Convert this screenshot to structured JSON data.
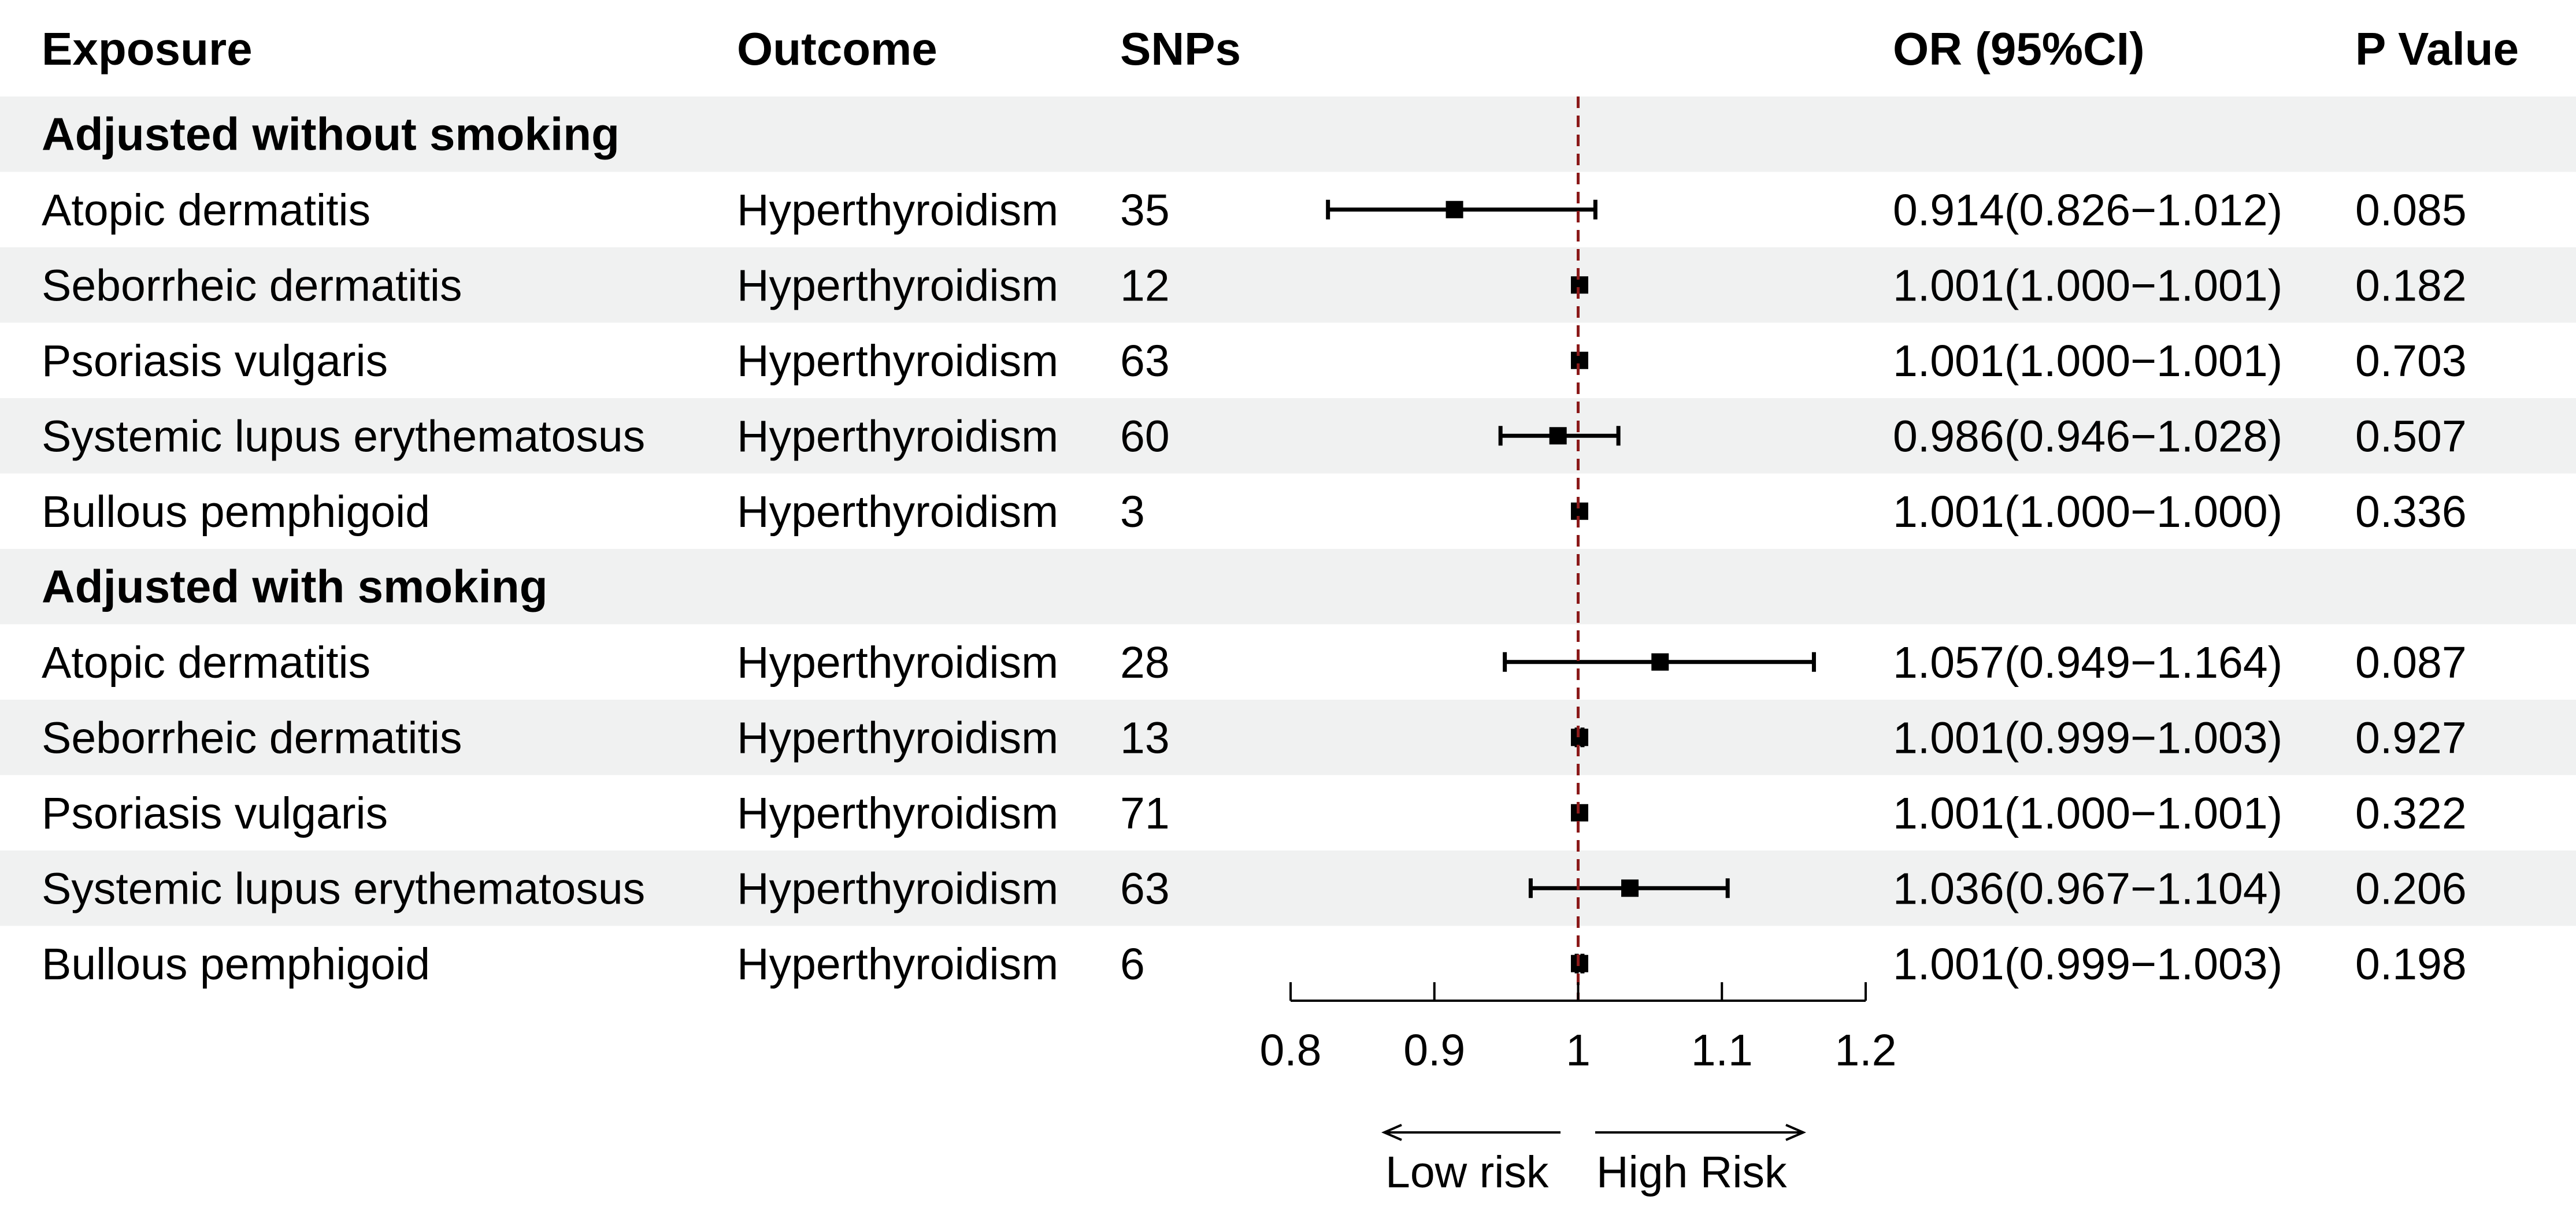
{
  "headers": {
    "exposure": "Exposure",
    "outcome": "Outcome",
    "snps": "SNPs",
    "or": "OR (95%CI)",
    "p": "P Value"
  },
  "chart_data": {
    "type": "forest",
    "reference_line": 1,
    "xlim": [
      0.8,
      1.2
    ],
    "ticks": [
      "0.8",
      "0.9",
      "1",
      "1.1",
      "1.2"
    ],
    "tick_values": [
      0.8,
      0.9,
      1.0,
      1.1,
      1.2
    ],
    "low_risk_label": "Low risk",
    "high_risk_label": "High Risk",
    "sections": [
      {
        "title": "Adjusted without smoking",
        "rows": [
          {
            "exposure": "Atopic dermatitis",
            "outcome": "Hyperthyroidism",
            "snps": "35",
            "or_text": "0.914(0.826−1.012)",
            "p": "0.085",
            "or": 0.914,
            "lo": 0.826,
            "hi": 1.012
          },
          {
            "exposure": "Seborrheic dermatitis",
            "outcome": "Hyperthyroidism",
            "snps": "12",
            "or_text": "1.001(1.000−1.001)",
            "p": "0.182",
            "or": 1.001,
            "lo": 1.0,
            "hi": 1.001
          },
          {
            "exposure": "Psoriasis vulgaris",
            "outcome": "Hyperthyroidism",
            "snps": "63",
            "or_text": "1.001(1.000−1.001)",
            "p": "0.703",
            "or": 1.001,
            "lo": 1.0,
            "hi": 1.001
          },
          {
            "exposure": "Systemic lupus erythematosus",
            "outcome": "Hyperthyroidism",
            "snps": "60",
            "or_text": "0.986(0.946−1.028)",
            "p": "0.507",
            "or": 0.986,
            "lo": 0.946,
            "hi": 1.028
          },
          {
            "exposure": "Bullous pemphigoid",
            "outcome": "Hyperthyroidism",
            "snps": "3",
            "or_text": "1.001(1.000−1.000)",
            "p": "0.336",
            "or": 1.001,
            "lo": 1.0,
            "hi": 1.0
          }
        ]
      },
      {
        "title": "Adjusted with smoking",
        "rows": [
          {
            "exposure": "Atopic dermatitis",
            "outcome": "Hyperthyroidism",
            "snps": "28",
            "or_text": "1.057(0.949−1.164)",
            "p": "0.087",
            "or": 1.057,
            "lo": 0.949,
            "hi": 1.164
          },
          {
            "exposure": "Seborrheic dermatitis",
            "outcome": "Hyperthyroidism",
            "snps": "13",
            "or_text": "1.001(0.999−1.003)",
            "p": "0.927",
            "or": 1.001,
            "lo": 0.999,
            "hi": 1.003
          },
          {
            "exposure": "Psoriasis vulgaris",
            "outcome": "Hyperthyroidism",
            "snps": "71",
            "or_text": "1.001(1.000−1.001)",
            "p": "0.322",
            "or": 1.001,
            "lo": 1.0,
            "hi": 1.001
          },
          {
            "exposure": "Systemic lupus erythematosus",
            "outcome": "Hyperthyroidism",
            "snps": "63",
            "or_text": "1.036(0.967−1.104)",
            "p": "0.206",
            "or": 1.036,
            "lo": 0.967,
            "hi": 1.104
          },
          {
            "exposure": "Bullous pemphigoid",
            "outcome": "Hyperthyroidism",
            "snps": "6",
            "or_text": "1.001(0.999−1.003)",
            "p": "0.198",
            "or": 1.001,
            "lo": 0.999,
            "hi": 1.003
          }
        ]
      }
    ]
  },
  "colors": {
    "stripe": "#f0f1f1",
    "reference_line": "#8b1a1a",
    "marks": "#000000"
  }
}
